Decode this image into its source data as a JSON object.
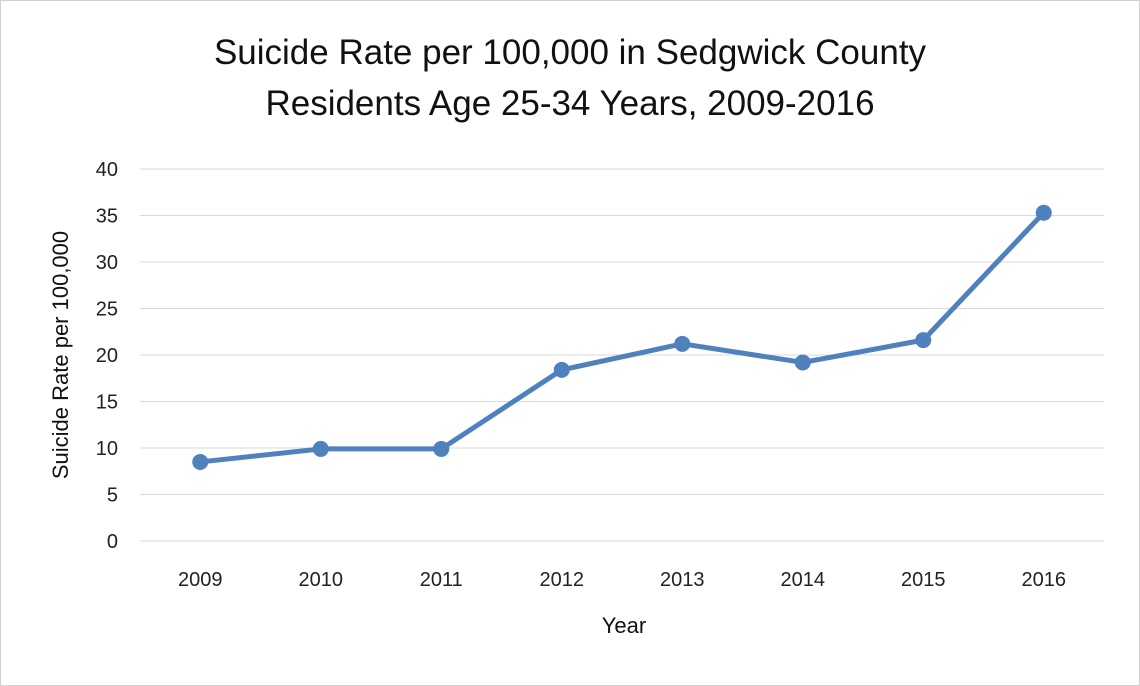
{
  "chart_data": {
    "type": "line",
    "title": [
      "Suicide Rate per 100,000 in Sedgwick County",
      "Residents Age 25-34 Years, 2009-2016"
    ],
    "xlabel": "Year",
    "ylabel": "Suicide Rate per 100,000",
    "categories": [
      "2009",
      "2010",
      "2011",
      "2012",
      "2013",
      "2014",
      "2015",
      "2016"
    ],
    "values": [
      8.5,
      9.9,
      9.9,
      18.4,
      21.2,
      19.2,
      21.6,
      35.3
    ],
    "ylim": [
      0,
      40
    ],
    "yticks": [
      0,
      5,
      10,
      15,
      20,
      25,
      30,
      35,
      40
    ],
    "grid": true,
    "legend": "none",
    "colors": {
      "line": "#4f81bd",
      "grid": "#d9d9d9"
    }
  }
}
